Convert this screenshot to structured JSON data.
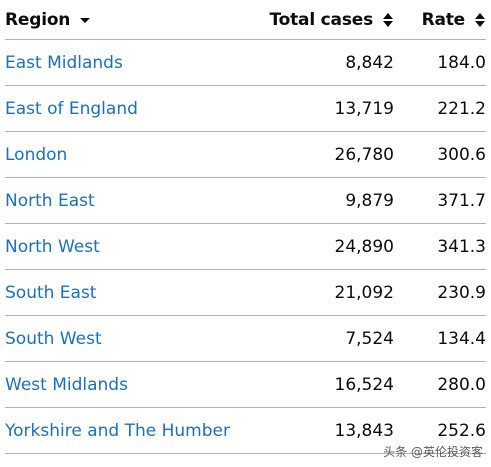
{
  "table": {
    "headers": {
      "region": "Region",
      "total_cases": "Total cases",
      "rate": "Rate"
    },
    "rows": [
      {
        "region": "East Midlands",
        "total_cases": "8,842",
        "rate": "184.0"
      },
      {
        "region": "East of England",
        "total_cases": "13,719",
        "rate": "221.2"
      },
      {
        "region": "London",
        "total_cases": "26,780",
        "rate": "300.6"
      },
      {
        "region": "North East",
        "total_cases": "9,879",
        "rate": "371.7"
      },
      {
        "region": "North West",
        "total_cases": "24,890",
        "rate": "341.3"
      },
      {
        "region": "South East",
        "total_cases": "21,092",
        "rate": "230.9"
      },
      {
        "region": "South West",
        "total_cases": "7,524",
        "rate": "134.4"
      },
      {
        "region": "West Midlands",
        "total_cases": "16,524",
        "rate": "280.0"
      },
      {
        "region": "Yorkshire and The Humber",
        "total_cases": "13,843",
        "rate": "252.6"
      }
    ]
  },
  "icons": {
    "region_sort": "sort-descending-icon",
    "total_sort": "sort-both-icon",
    "rate_sort": "sort-both-icon"
  },
  "colors": {
    "link": "#1d70b8",
    "text": "#0b0c0c",
    "border": "#b1b4b6"
  },
  "watermark": "头条 @英伦投资客"
}
